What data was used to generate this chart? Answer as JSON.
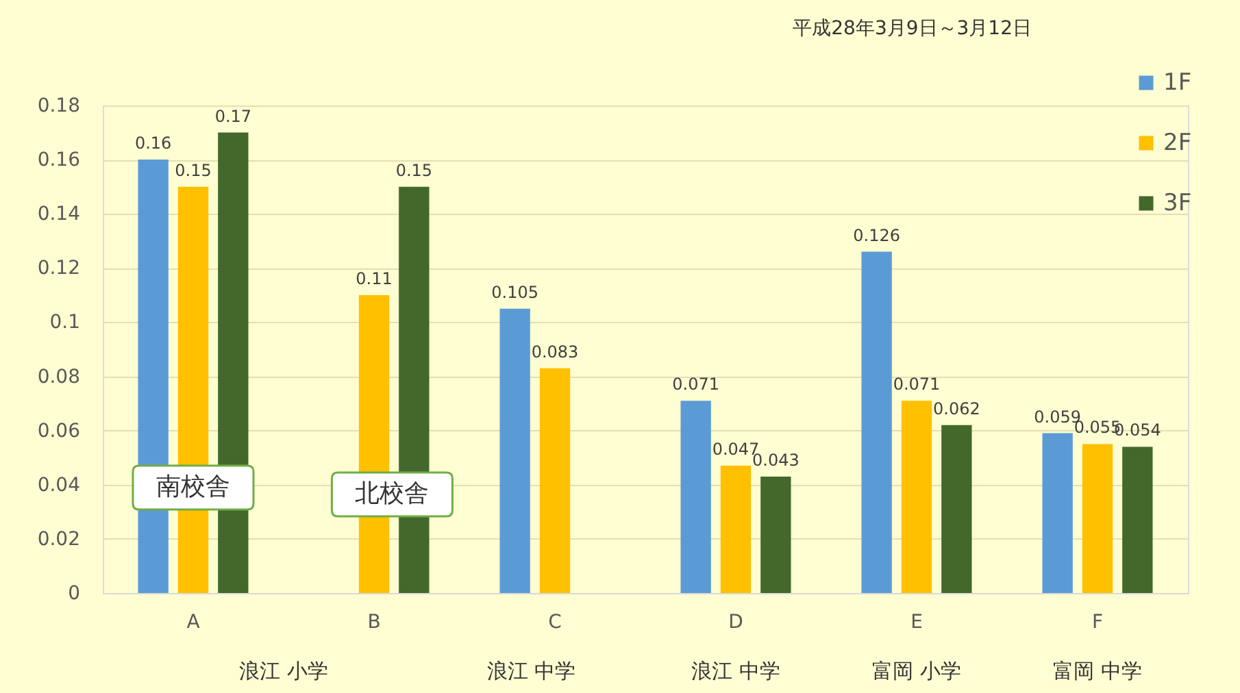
{
  "chart_data": {
    "type": "bar",
    "title": "平成28年3月9日～3月12日",
    "categories": [
      "A",
      "B",
      "C",
      "D",
      "E",
      "F"
    ],
    "series": [
      {
        "name": "1F",
        "color": "#5b9bd5",
        "values": [
          0.16,
          null,
          0.105,
          0.071,
          0.126,
          0.059
        ]
      },
      {
        "name": "2F",
        "color": "#ffc000",
        "values": [
          0.15,
          0.11,
          0.083,
          0.047,
          0.071,
          0.055
        ]
      },
      {
        "name": "3F",
        "color": "#43682b",
        "values": [
          0.17,
          0.15,
          null,
          0.043,
          0.062,
          0.054
        ]
      }
    ],
    "ylim": [
      0,
      0.18
    ],
    "yticks": [
      0,
      0.02,
      0.04,
      0.06,
      0.08,
      0.1,
      0.12,
      0.14,
      0.16,
      0.18
    ],
    "grid": "y",
    "legend": "top right",
    "data_labels": true,
    "annotations": [
      "南校舎",
      "北校舎",
      "浪江 小学",
      "浪江 中学",
      "浪江 中学",
      "富岡 小学",
      "富岡 中学"
    ]
  }
}
